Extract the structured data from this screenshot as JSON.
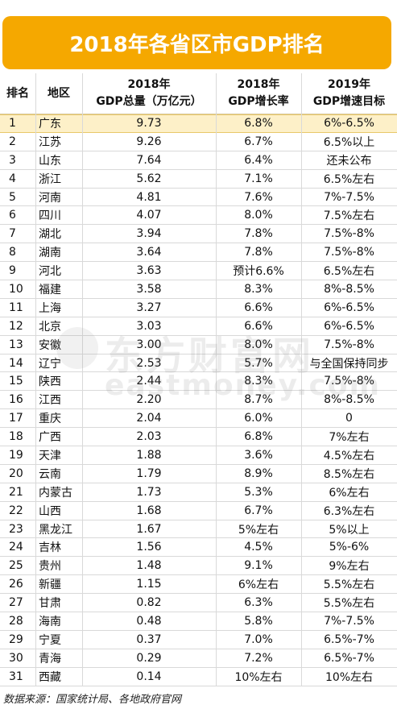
{
  "title": "2018年各省区市GDP排名",
  "headers": {
    "rank": "排名",
    "region": "地区",
    "gdp_line1": "2018年",
    "gdp_line2": "GDP总量（万亿元）",
    "growth_line1": "2018年",
    "growth_line2": "GDP增长率",
    "target_line1": "2019年",
    "target_line2": "GDP增速目标"
  },
  "rows": [
    {
      "rank": "1",
      "region": "广东",
      "gdp": "9.73",
      "growth": "6.8%",
      "target": "6%-6.5%"
    },
    {
      "rank": "2",
      "region": "江苏",
      "gdp": "9.26",
      "growth": "6.7%",
      "target": "6.5%以上"
    },
    {
      "rank": "3",
      "region": "山东",
      "gdp": "7.64",
      "growth": "6.4%",
      "target": "还未公布"
    },
    {
      "rank": "4",
      "region": "浙江",
      "gdp": "5.62",
      "growth": "7.1%",
      "target": "6.5%左右"
    },
    {
      "rank": "5",
      "region": "河南",
      "gdp": "4.81",
      "growth": "7.6%",
      "target": "7%-7.5%"
    },
    {
      "rank": "6",
      "region": "四川",
      "gdp": "4.07",
      "growth": "8.0%",
      "target": "7.5%左右"
    },
    {
      "rank": "7",
      "region": "湖北",
      "gdp": "3.94",
      "growth": "7.8%",
      "target": "7.5%-8%"
    },
    {
      "rank": "8",
      "region": "湖南",
      "gdp": "3.64",
      "growth": "7.8%",
      "target": "7.5%-8%"
    },
    {
      "rank": "9",
      "region": "河北",
      "gdp": "3.63",
      "growth": "预计6.6%",
      "target": "6.5%左右"
    },
    {
      "rank": "10",
      "region": "福建",
      "gdp": "3.58",
      "growth": "8.3%",
      "target": "8%-8.5%"
    },
    {
      "rank": "11",
      "region": "上海",
      "gdp": "3.27",
      "growth": "6.6%",
      "target": "6%-6.5%"
    },
    {
      "rank": "12",
      "region": "北京",
      "gdp": "3.03",
      "growth": "6.6%",
      "target": "6%-6.5%"
    },
    {
      "rank": "13",
      "region": "安徽",
      "gdp": "3.00",
      "growth": "8.0%",
      "target": "7.5%-8%"
    },
    {
      "rank": "14",
      "region": "辽宁",
      "gdp": "2.53",
      "growth": "5.7%",
      "target": "与全国保持同步"
    },
    {
      "rank": "15",
      "region": "陕西",
      "gdp": "2.44",
      "growth": "8.3%",
      "target": "7.5%-8%"
    },
    {
      "rank": "16",
      "region": "江西",
      "gdp": "2.20",
      "growth": "8.7%",
      "target": "8%-8.5%"
    },
    {
      "rank": "17",
      "region": "重庆",
      "gdp": "2.04",
      "growth": "6.0%",
      "target": "0"
    },
    {
      "rank": "18",
      "region": "广西",
      "gdp": "2.03",
      "growth": "6.8%",
      "target": "7%左右"
    },
    {
      "rank": "19",
      "region": "天津",
      "gdp": "1.88",
      "growth": "3.6%",
      "target": "4.5%左右"
    },
    {
      "rank": "20",
      "region": "云南",
      "gdp": "1.79",
      "growth": "8.9%",
      "target": "8.5%左右"
    },
    {
      "rank": "21",
      "region": "内蒙古",
      "gdp": "1.73",
      "growth": "5.3%",
      "target": "6%左右"
    },
    {
      "rank": "22",
      "region": "山西",
      "gdp": "1.68",
      "growth": "6.7%",
      "target": "6.3%左右"
    },
    {
      "rank": "23",
      "region": "黑龙江",
      "gdp": "1.67",
      "growth": "5%左右",
      "target": "5%以上"
    },
    {
      "rank": "24",
      "region": "吉林",
      "gdp": "1.56",
      "growth": "4.5%",
      "target": "5%-6%"
    },
    {
      "rank": "25",
      "region": "贵州",
      "gdp": "1.48",
      "growth": "9.1%",
      "target": "9%左右"
    },
    {
      "rank": "26",
      "region": "新疆",
      "gdp": "1.15",
      "growth": "6%左右",
      "target": "5.5%左右"
    },
    {
      "rank": "27",
      "region": "甘肃",
      "gdp": "0.82",
      "growth": "6.3%",
      "target": "5.5%左右"
    },
    {
      "rank": "28",
      "region": "海南",
      "gdp": "0.48",
      "growth": "5.8%",
      "target": "7%-7.5%"
    },
    {
      "rank": "29",
      "region": "宁夏",
      "gdp": "0.37",
      "growth": "7.0%",
      "target": "6.5%-7%"
    },
    {
      "rank": "30",
      "region": "青海",
      "gdp": "0.29",
      "growth": "7.2%",
      "target": "6.5%-7%"
    },
    {
      "rank": "31",
      "region": "西藏",
      "gdp": "0.14",
      "growth": "10%左右",
      "target": "10%左右"
    }
  ],
  "watermark": {
    "cn": "东方财富网",
    "en": "eastmoney.com"
  },
  "footer": "数据来源：国家统计局、各地政府官网",
  "colors": {
    "title_bg": "#f5a800",
    "highlight_row": "#fdf0c8"
  }
}
